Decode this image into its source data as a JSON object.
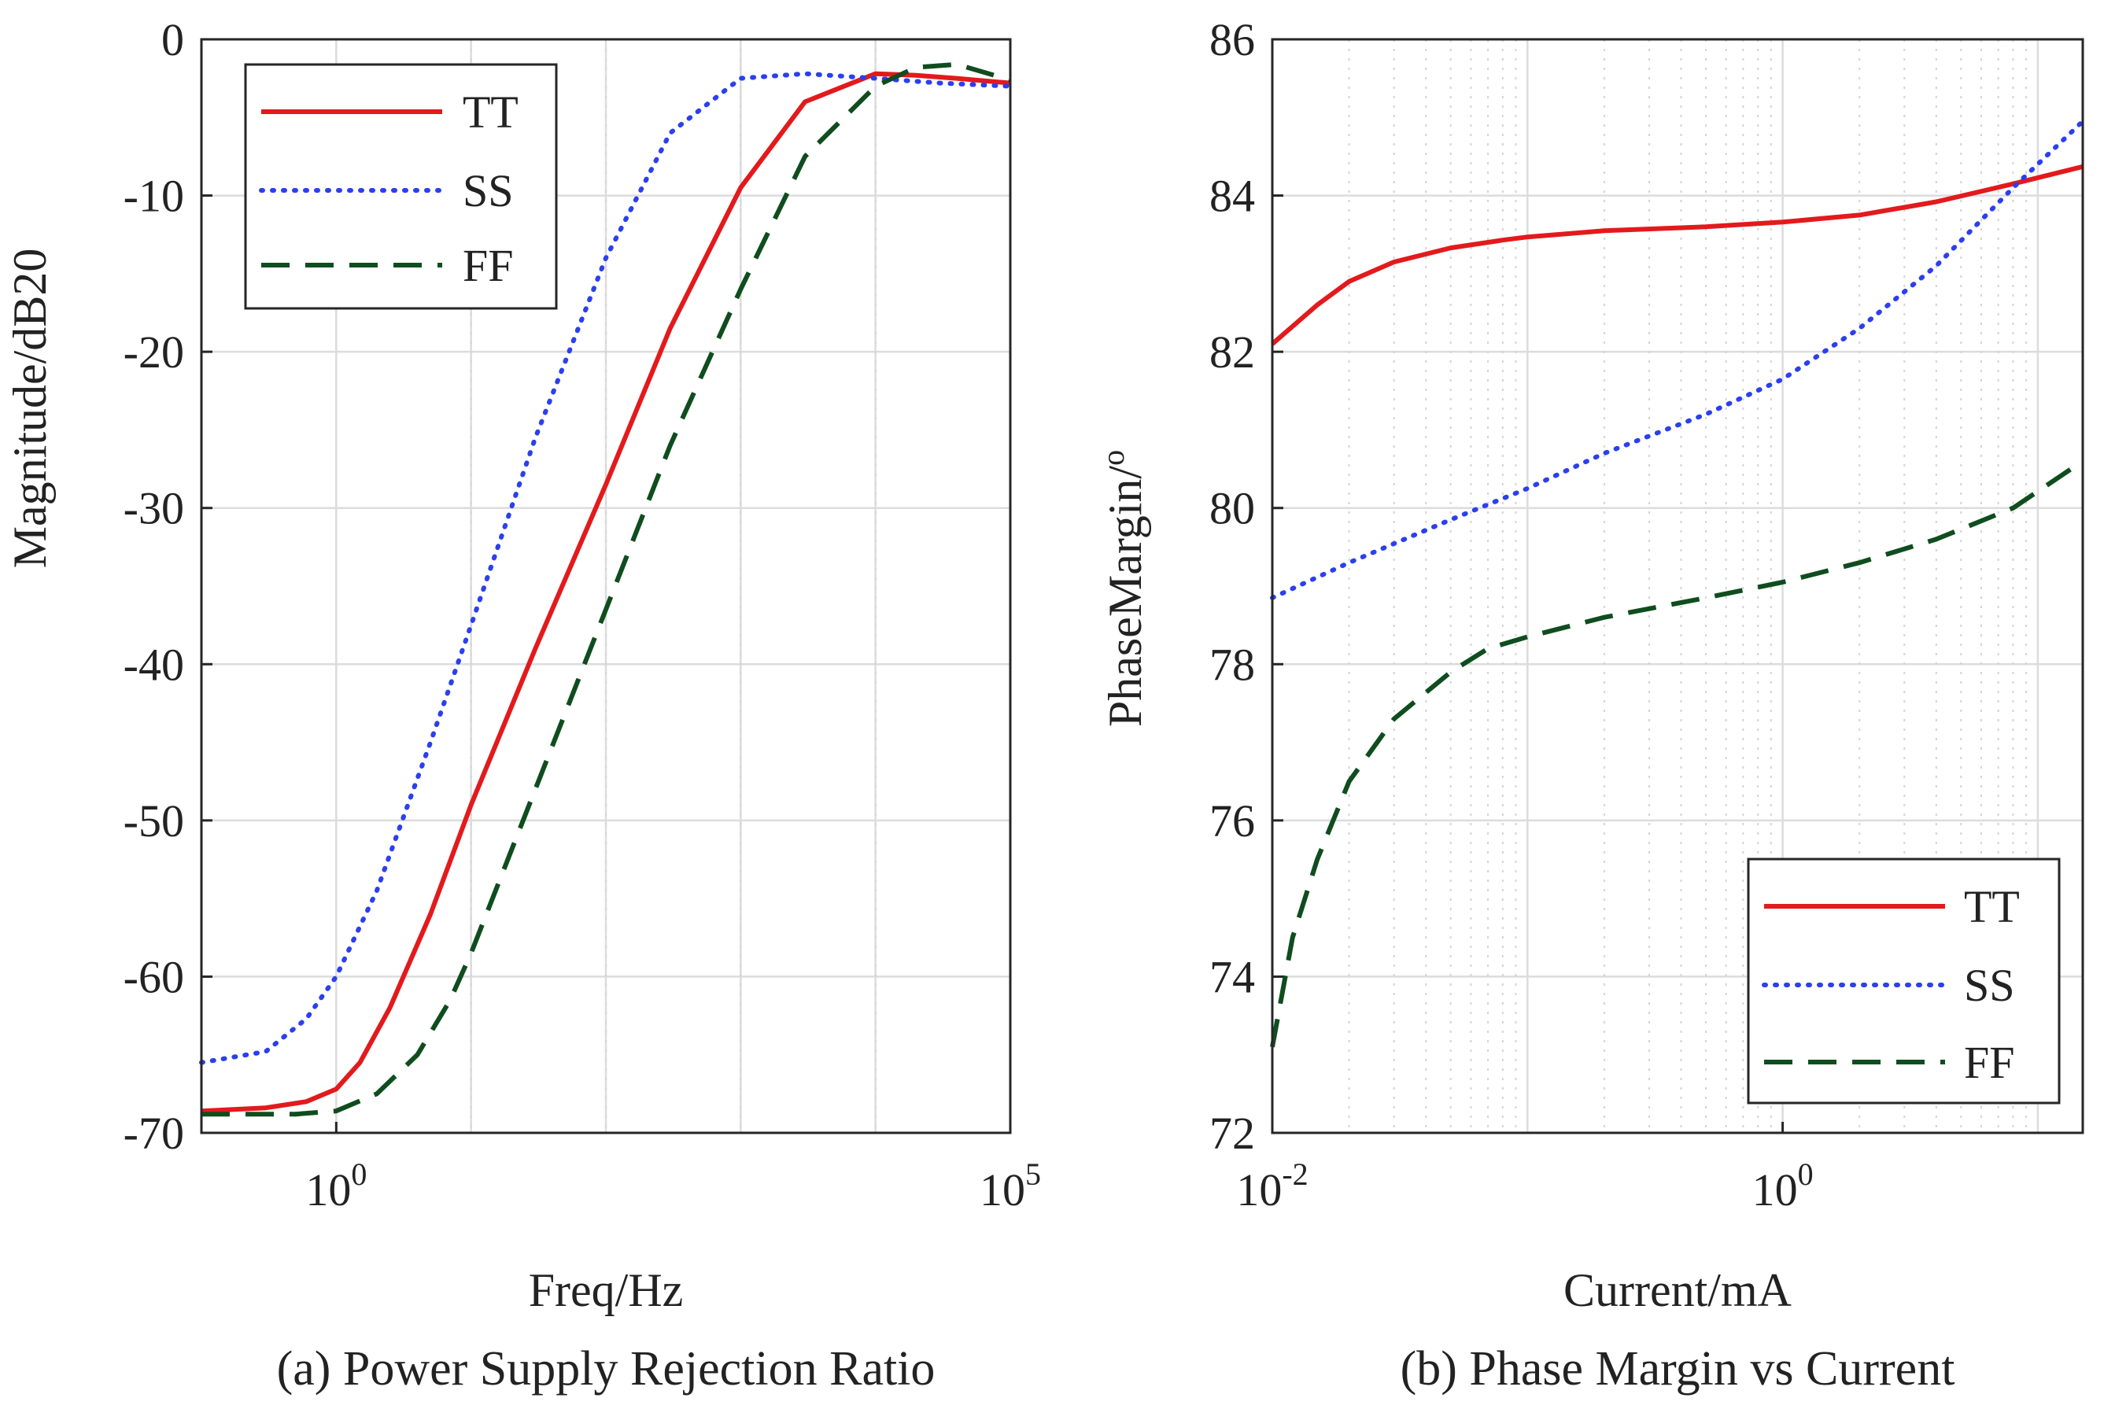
{
  "chart_data": [
    {
      "type": "line",
      "caption": "(a) Power Supply Rejection Ratio",
      "xlabel": "Freq/Hz",
      "ylabel": "Magnitude/dB20",
      "x_scale": "log",
      "xlim": [
        0.1,
        100000
      ],
      "ylim": [
        -70,
        0
      ],
      "x_ticks": [
        1,
        100000
      ],
      "x_tick_labels": [
        {
          "base": "10",
          "exp": "0"
        },
        {
          "base": "10",
          "exp": "5"
        }
      ],
      "y_ticks": [
        0,
        -10,
        -20,
        -30,
        -40,
        -50,
        -60,
        -70
      ],
      "y_tick_labels": [
        "0",
        "-10",
        "-20",
        "-30",
        "-40",
        "-50",
        "-60",
        "-70"
      ],
      "grid": true,
      "legend": "top-left",
      "series": [
        {
          "name": "TT",
          "color": "#e31a1c",
          "style": "solid",
          "x": [
            0.1,
            0.3,
            0.6,
            1,
            1.5,
            2.5,
            5,
            10,
            30,
            100,
            300,
            1000,
            3000,
            10000,
            20000,
            40000,
            100000
          ],
          "y": [
            -68.6,
            -68.4,
            -68.0,
            -67.2,
            -65.5,
            -62.0,
            -56.0,
            -49.0,
            -39.0,
            -28.5,
            -18.5,
            -9.5,
            -4.0,
            -2.2,
            -2.3,
            -2.5,
            -2.8
          ]
        },
        {
          "name": "SS",
          "color": "#2b3ff0",
          "style": "dotted",
          "x": [
            0.1,
            0.3,
            0.6,
            1,
            2,
            5,
            10,
            30,
            100,
            300,
            1000,
            3000,
            10000,
            30000,
            100000
          ],
          "y": [
            -65.5,
            -64.8,
            -62.7,
            -60.0,
            -54.5,
            -45.0,
            -37.5,
            -25.5,
            -14.0,
            -6.0,
            -2.5,
            -2.2,
            -2.5,
            -2.8,
            -3.0
          ]
        },
        {
          "name": "FF",
          "color": "#0f4d1e",
          "style": "dashed",
          "x": [
            0.1,
            0.5,
            1,
            2,
            4,
            7,
            10,
            30,
            100,
            300,
            1000,
            3000,
            10000,
            20000,
            40000,
            100000
          ],
          "y": [
            -68.8,
            -68.8,
            -68.6,
            -67.5,
            -65.0,
            -61.5,
            -58.5,
            -48.0,
            -36.5,
            -26.0,
            -16.0,
            -7.5,
            -3.0,
            -1.8,
            -1.6,
            -2.6
          ]
        }
      ]
    },
    {
      "type": "line",
      "caption": "(b) Phase Margin vs Current",
      "xlabel": "Current/mA",
      "ylabel": "PhaseMargin/",
      "ylabel_superscript": "o",
      "x_scale": "log",
      "xlim": [
        0.01,
        15
      ],
      "ylim": [
        72,
        86
      ],
      "x_ticks": [
        0.01,
        1
      ],
      "x_tick_labels": [
        {
          "base": "10",
          "exp": "-2"
        },
        {
          "base": "10",
          "exp": "0"
        }
      ],
      "y_ticks": [
        72,
        74,
        76,
        78,
        80,
        82,
        84,
        86
      ],
      "y_tick_labels": [
        "72",
        "74",
        "76",
        "78",
        "80",
        "82",
        "84",
        "86"
      ],
      "grid": true,
      "legend": "bottom-right",
      "series": [
        {
          "name": "TT",
          "color": "#e31a1c",
          "style": "solid",
          "x": [
            0.01,
            0.015,
            0.02,
            0.03,
            0.05,
            0.08,
            0.1,
            0.2,
            0.5,
            1,
            2,
            4,
            8,
            15
          ],
          "y": [
            82.1,
            82.6,
            82.9,
            83.15,
            83.33,
            83.43,
            83.47,
            83.55,
            83.6,
            83.66,
            83.75,
            83.92,
            84.15,
            84.37
          ]
        },
        {
          "name": "SS",
          "color": "#2b3ff0",
          "style": "dotted",
          "x": [
            0.01,
            0.02,
            0.05,
            0.1,
            0.2,
            0.5,
            1,
            2,
            4,
            8,
            15
          ],
          "y": [
            78.85,
            79.3,
            79.85,
            80.25,
            80.7,
            81.2,
            81.65,
            82.3,
            83.1,
            84.1,
            84.95
          ]
        },
        {
          "name": "FF",
          "color": "#0f4d1e",
          "style": "dashed",
          "x": [
            0.01,
            0.012,
            0.015,
            0.02,
            0.03,
            0.05,
            0.07,
            0.1,
            0.2,
            0.5,
            1,
            2,
            4,
            8,
            15
          ],
          "y": [
            73.1,
            74.5,
            75.5,
            76.5,
            77.3,
            77.9,
            78.2,
            78.35,
            78.6,
            78.85,
            79.05,
            79.3,
            79.6,
            80.0,
            80.6
          ]
        }
      ]
    }
  ]
}
